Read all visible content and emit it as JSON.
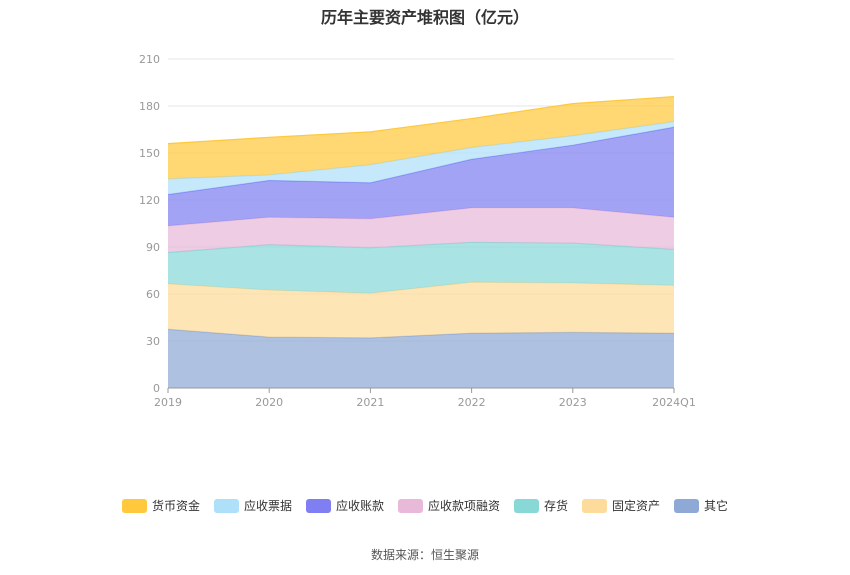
{
  "title": "历年主要资产堆积图（亿元）",
  "source": "数据来源：恒生聚源",
  "chart_data": {
    "type": "area",
    "stacked": true,
    "categories": [
      "2019",
      "2020",
      "2021",
      "2022",
      "2023",
      "2024Q1"
    ],
    "yticks": [
      0,
      30,
      60,
      90,
      120,
      150,
      180,
      210
    ],
    "ylim": [
      0,
      210
    ],
    "grid": true,
    "legend_position": "bottom",
    "series": [
      {
        "name": "其它",
        "color": "#8fa9d6",
        "values": [
          37.5,
          32.5,
          32.0,
          35.0,
          35.5,
          35.0
        ]
      },
      {
        "name": "固定资产",
        "color": "#fddb9a",
        "values": [
          29.0,
          30.0,
          28.5,
          32.5,
          31.5,
          30.5
        ]
      },
      {
        "name": "存货",
        "color": "#88d8d8",
        "values": [
          20.0,
          29.0,
          29.0,
          25.5,
          25.5,
          23.0
        ]
      },
      {
        "name": "应收款项融资",
        "color": "#e8b9d8",
        "values": [
          17.0,
          17.5,
          18.5,
          22.0,
          22.5,
          20.5
        ]
      },
      {
        "name": "应收账款",
        "color": "#7f7ff3",
        "values": [
          20.0,
          23.5,
          23.0,
          31.0,
          40.0,
          57.5
        ]
      },
      {
        "name": "应收票据",
        "color": "#aee0fa",
        "values": [
          10.0,
          3.5,
          11.5,
          7.5,
          6.0,
          3.5
        ]
      },
      {
        "name": "货币资金",
        "color": "#ffc83d",
        "values": [
          22.5,
          24.0,
          21.0,
          18.5,
          20.5,
          16.0
        ]
      }
    ]
  }
}
